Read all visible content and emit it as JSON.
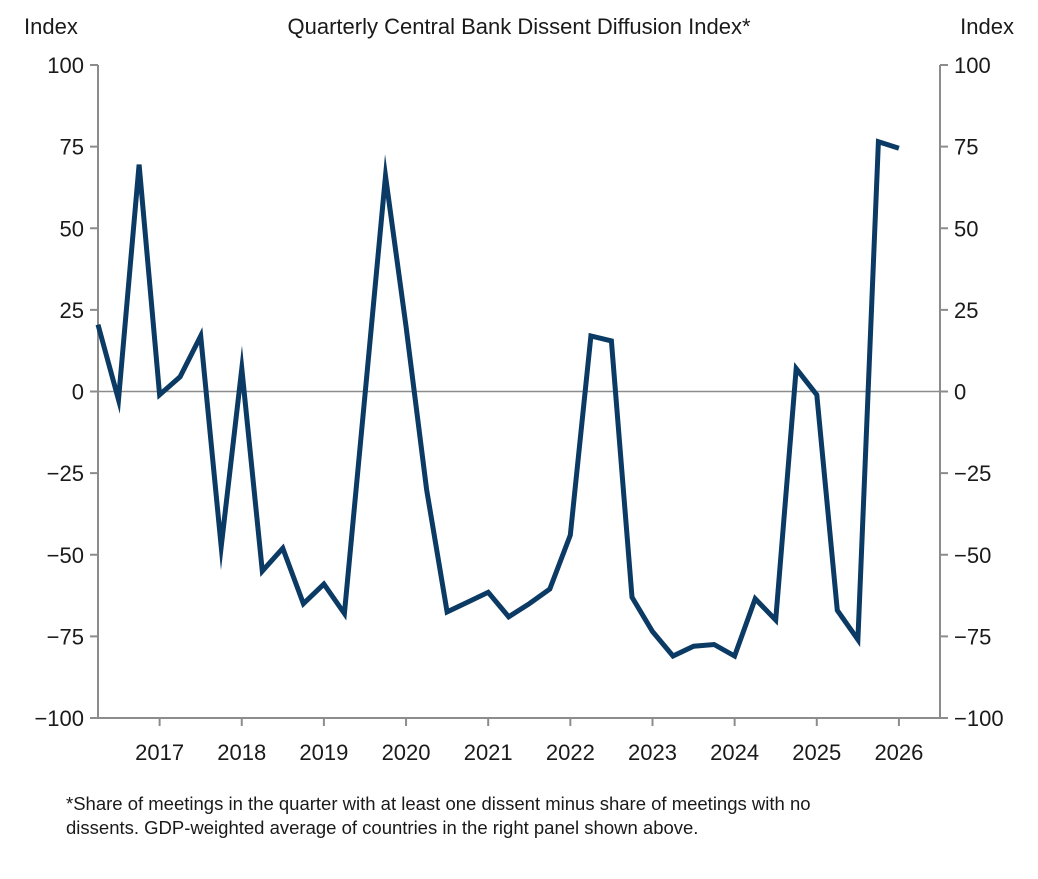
{
  "chart_data": {
    "type": "line",
    "title": "Quarterly Central Bank Dissent Diffusion Index*",
    "ylabel_left": "Index",
    "ylabel_right": "Index",
    "ylim": [
      -100,
      100
    ],
    "xlim": [
      2016.25,
      2026.5
    ],
    "yticks": [
      100,
      75,
      50,
      25,
      0,
      -25,
      -50,
      -75,
      -100
    ],
    "ytick_labels": [
      "100",
      "75",
      "50",
      "25",
      "0",
      "−25",
      "−50",
      "−75",
      "−100"
    ],
    "xticks": [
      2017,
      2018,
      2019,
      2020,
      2021,
      2022,
      2023,
      2024,
      2025,
      2026
    ],
    "xtick_labels": [
      "2017",
      "2018",
      "2019",
      "2020",
      "2021",
      "2022",
      "2023",
      "2024",
      "2025",
      "2026"
    ],
    "grid": false,
    "zero_line": true,
    "series": [
      {
        "name": "Dissent Diffusion Index",
        "color": "#0b3a64",
        "x": [
          2016.25,
          2016.5,
          2016.75,
          2017,
          2017.25,
          2017.5,
          2017.75,
          2018,
          2018.25,
          2018.5,
          2018.75,
          2019,
          2019.25,
          2019.5,
          2019.75,
          2020,
          2020.25,
          2020.5,
          2020.75,
          2021,
          2021.25,
          2021.5,
          2021.75,
          2022,
          2022.25,
          2022.5,
          2022.75,
          2023,
          2023.25,
          2023.5,
          2023.75,
          2024,
          2024.25,
          2024.5,
          2024.75,
          2025,
          2025.25,
          2025.5,
          2025.75,
          2026
        ],
        "values": [
          20.5,
          -2.5,
          69.5,
          -1,
          4.5,
          17,
          -47.5,
          7,
          -55,
          -48,
          -65,
          -59,
          -68,
          -1,
          66,
          20,
          -30,
          -67.5,
          -64.5,
          -61.5,
          -69,
          -65,
          -60.5,
          -44,
          17,
          15.5,
          -63,
          -73.5,
          -81,
          -78,
          -77.5,
          -81,
          -63.5,
          -70,
          7,
          -1,
          -67,
          -76,
          76.5,
          74.5
        ]
      }
    ],
    "footnote": "*Share of meetings in the quarter with at least one dissent minus share of meetings with no dissents. GDP-weighted average of countries in the right panel shown above."
  }
}
